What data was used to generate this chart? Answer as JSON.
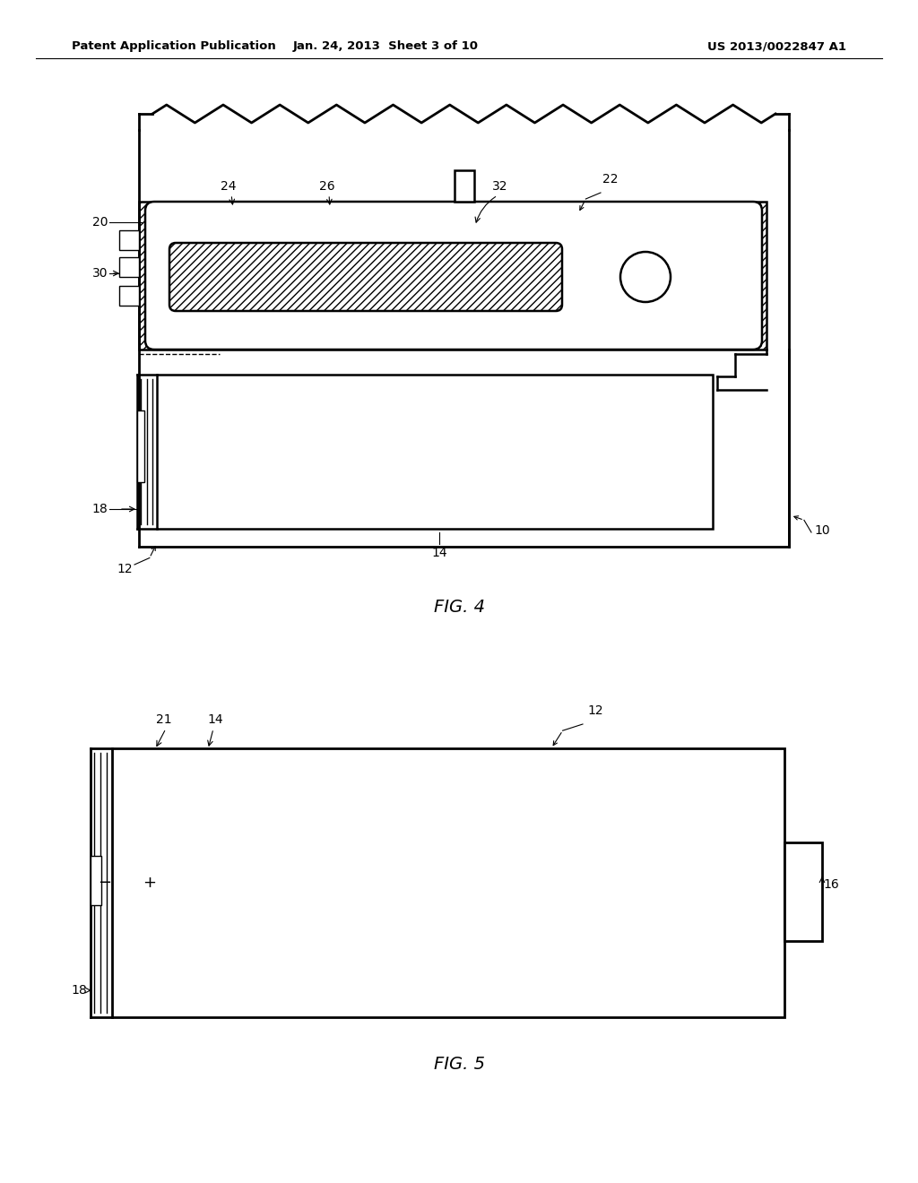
{
  "bg_color": "#ffffff",
  "line_color": "#000000",
  "header_left": "Patent Application Publication",
  "header_center": "Jan. 24, 2013  Sheet 3 of 10",
  "header_right": "US 2013/0022847 A1",
  "fig4_label": "FIG. 4",
  "fig5_label": "FIG. 5",
  "lw_main": 1.8,
  "lw_thin": 1.0,
  "lw_outer": 2.0,
  "fs_header": 9.5,
  "fs_label": 10,
  "fs_caption": 14
}
